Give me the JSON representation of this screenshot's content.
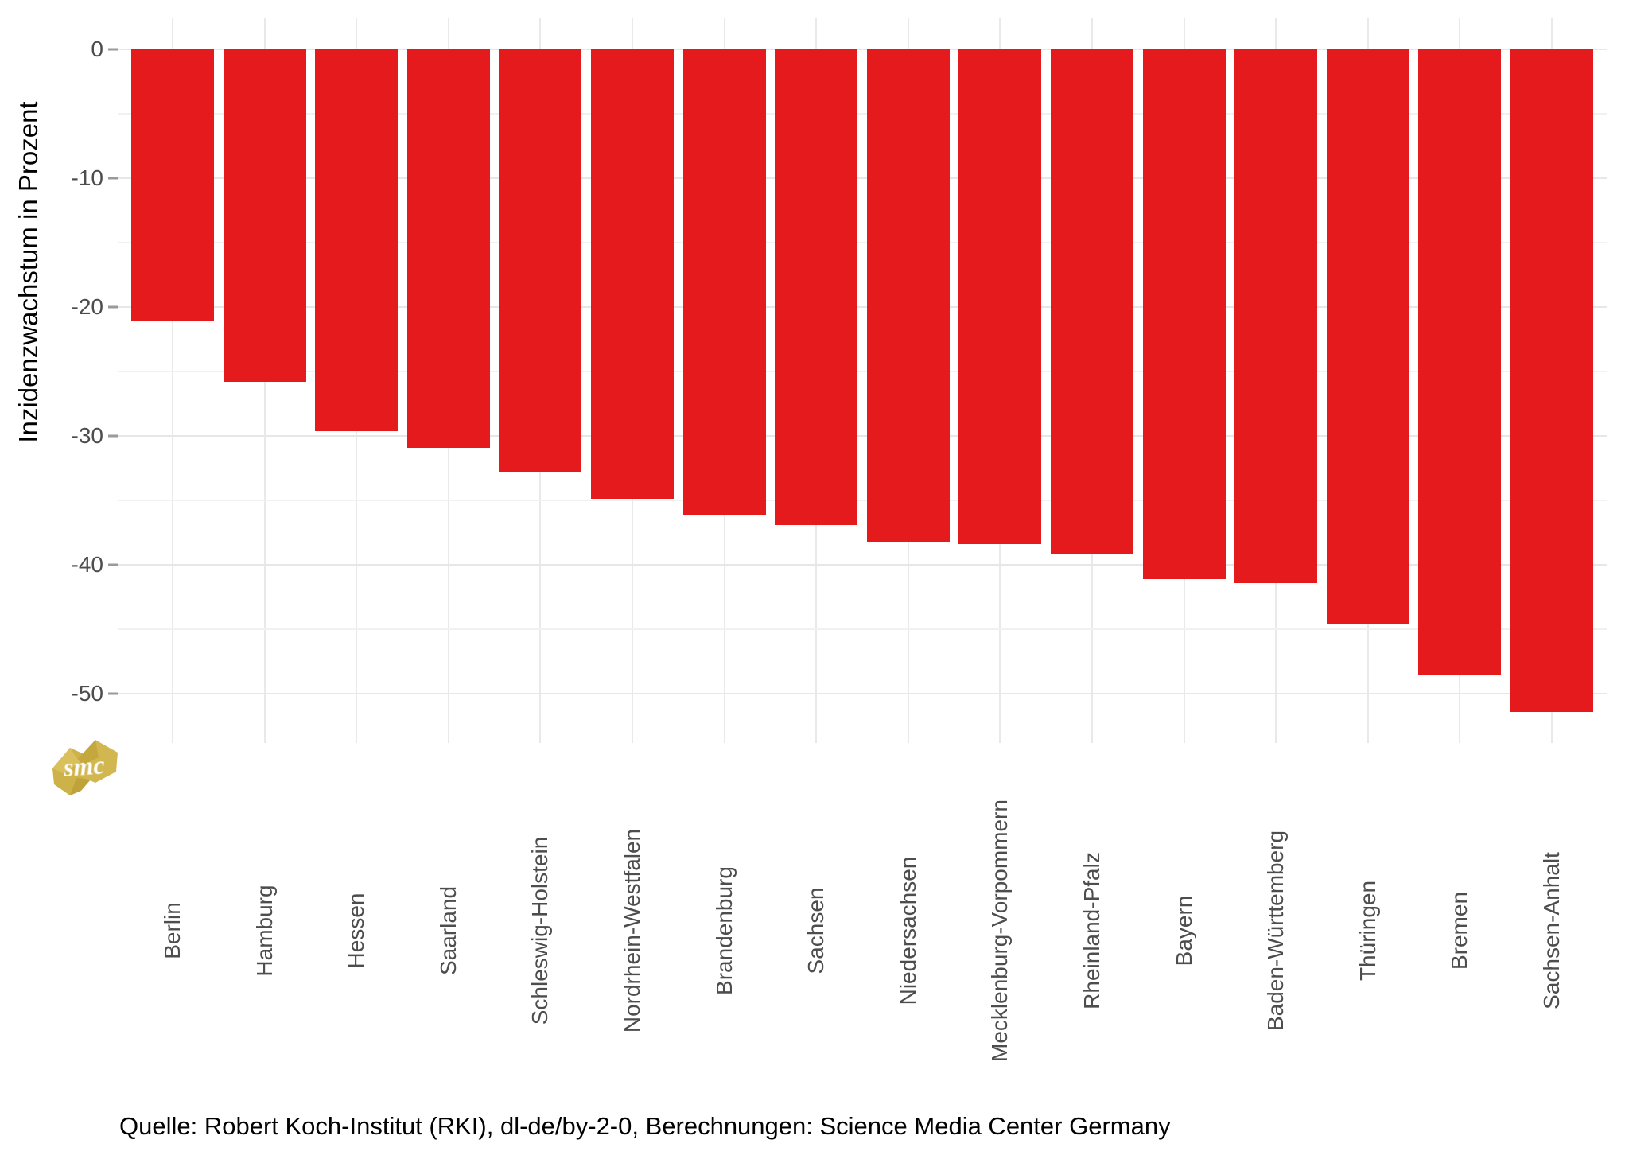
{
  "chart_data": {
    "type": "bar",
    "title": "",
    "xlabel": "",
    "ylabel": "Inzidenzwachstum in Prozent",
    "categories": [
      "Berlin",
      "Hamburg",
      "Hessen",
      "Saarland",
      "Schleswig-Holstein",
      "Nordrhein-Westfalen",
      "Brandenburg",
      "Sachsen",
      "Niedersachsen",
      "Mecklenburg-Vorpommern",
      "Rheinland-Pfalz",
      "Bayern",
      "Baden-Württemberg",
      "Thüringen",
      "Bremen",
      "Sachsen-Anhalt"
    ],
    "values": [
      -21.1,
      -25.8,
      -29.6,
      -30.9,
      -32.8,
      -34.9,
      -36.1,
      -36.9,
      -38.2,
      -38.4,
      -39.2,
      -41.1,
      -41.4,
      -44.6,
      -48.6,
      -51.4
    ],
    "yticks": [
      0,
      -10,
      -20,
      -30,
      -40,
      -50
    ],
    "ytick_labels": [
      "0",
      "-10",
      "-20",
      "-30",
      "-40",
      "-50"
    ],
    "minor_yticks": [
      -5,
      -15,
      -25,
      -35,
      -45
    ],
    "ylim": [
      -53.8,
      2.5
    ],
    "grid": "on",
    "legend_position": "none",
    "bar_color": "#e41a1c"
  },
  "colors": {
    "bar": "#e41a1c",
    "grid_major": "#e7e7e7",
    "grid_minor": "#f1f1f1",
    "axis_text": "#4d4d4d",
    "logo_gold": "#cdb24a",
    "logo_gold_dark": "#bfa23a",
    "logo_gold_light": "#d9c05c"
  },
  "logo": {
    "label": "smc"
  },
  "source_line": "Quelle: Robert Koch-Institut (RKI), dl-de/by-2-0, Berechnungen: Science Media Center Germany"
}
